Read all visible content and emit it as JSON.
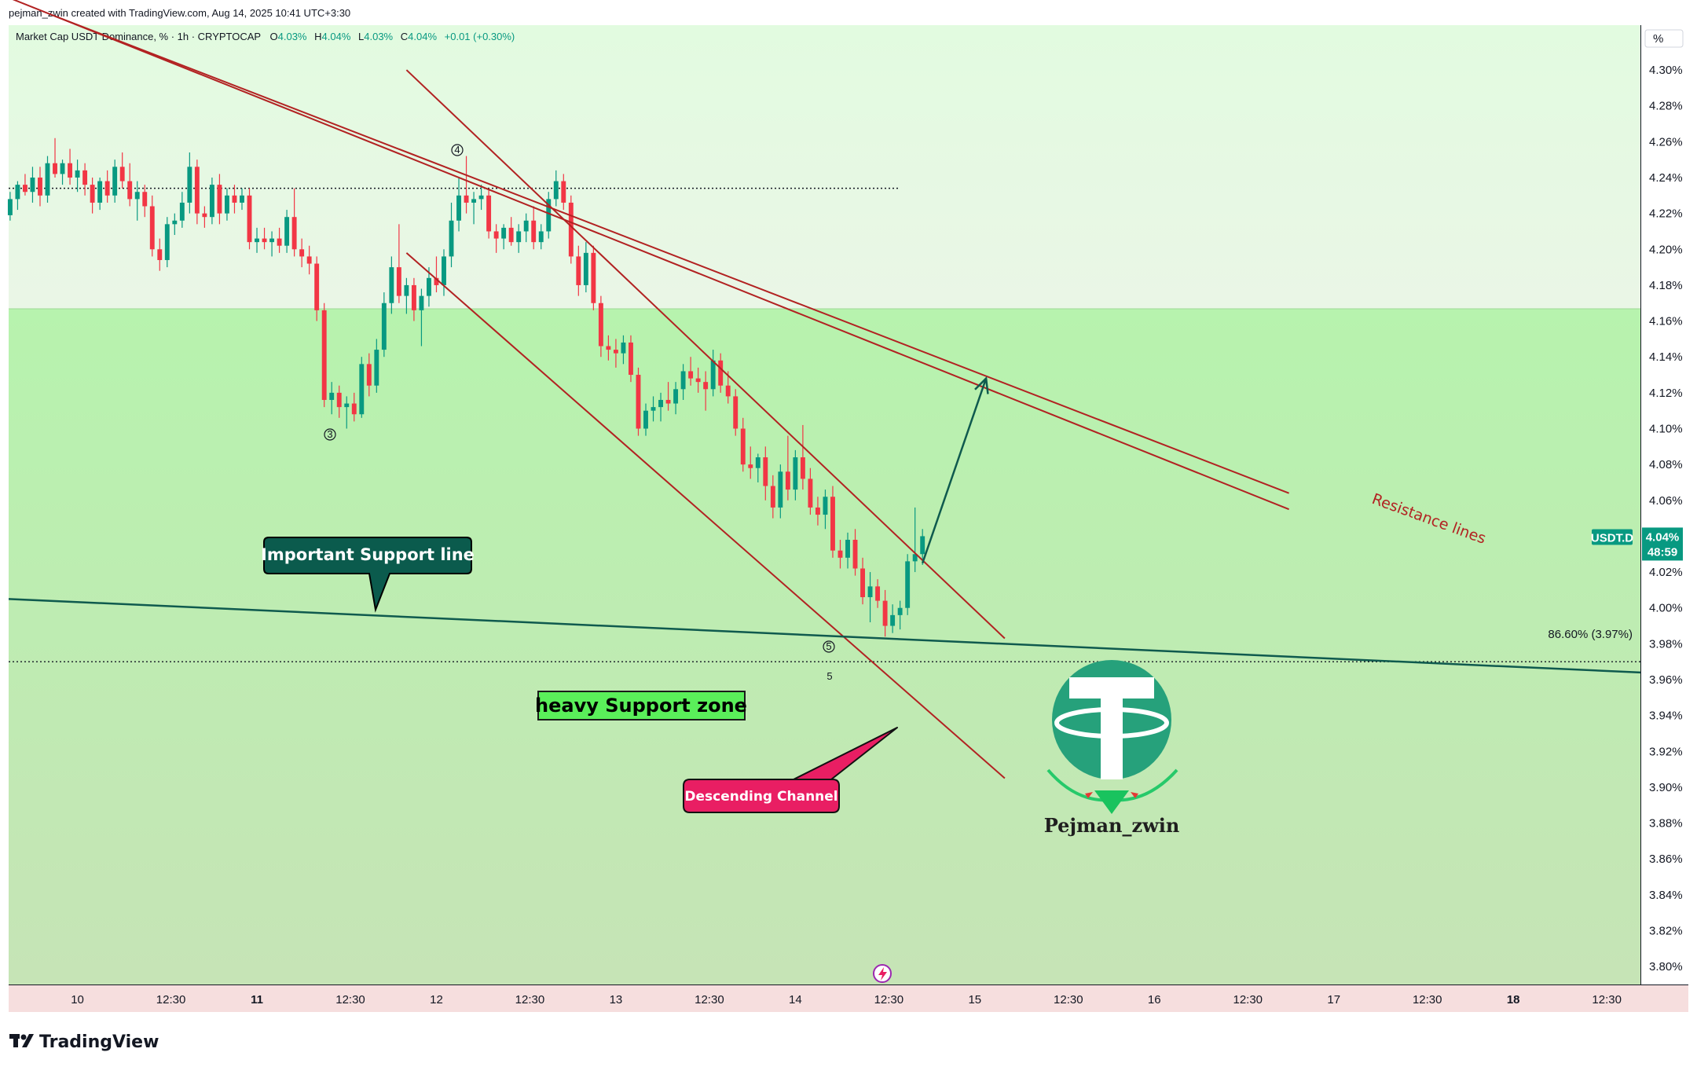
{
  "header": {
    "credit": "pejman_zwin created with TradingView.com, Aug 14, 2025 10:41 UTC+3:30",
    "symbol_line": "Market Cap USDT Dominance, % · 1h · CRYPTOCAP",
    "ohlc": {
      "o_label": "O",
      "o": "4.03%",
      "h_label": "H",
      "h": "4.04%",
      "l_label": "L",
      "l": "4.03%",
      "c_label": "C",
      "c": "4.04%",
      "change": "+0.01 (+0.30%)"
    },
    "unit_button": "%"
  },
  "price_tag": {
    "symbol": "USDT.D",
    "price": "4.04%",
    "countdown": "48:59"
  },
  "fib_label": "86.60% (3.97%)",
  "annotations": {
    "support_line": "Important Support line",
    "support_zone": "heavy Support zone",
    "channel": "Descending Channel",
    "resistance": "Resistance lines",
    "wave_3": "3",
    "wave_4": "4",
    "wave_5_circle": "5",
    "wave_5": "5"
  },
  "logo": {
    "name": "Pejman_zwin"
  },
  "footer": {
    "brand": "TradingView"
  },
  "colors": {
    "up": "#089981",
    "down": "#f23645",
    "resistance": "#b22222",
    "support_line": "#0f5a4e",
    "callout_support": "#0b5b4d",
    "callout_channel": "#e91e63",
    "zone_label_bg": "#5aef5a",
    "tether": "#26a17b",
    "bg_upper": "#e6fae6",
    "bg_zone": "#b8f1b0",
    "time_axis": "#f6dede"
  },
  "chart_data": {
    "type": "candlestick",
    "symbol": "USDT.D",
    "timeframe": "1h",
    "y_unit": "%",
    "ylim": [
      3.79,
      4.325
    ],
    "y_ticks": [
      "4.30%",
      "4.28%",
      "4.26%",
      "4.24%",
      "4.22%",
      "4.20%",
      "4.18%",
      "4.16%",
      "4.14%",
      "4.12%",
      "4.10%",
      "4.08%",
      "4.06%",
      "4.04%",
      "4.02%",
      "4.00%",
      "3.98%",
      "3.96%",
      "3.94%",
      "3.92%",
      "3.90%",
      "3.88%",
      "3.86%",
      "3.84%",
      "3.82%",
      "3.80%"
    ],
    "y_tick_values": [
      4.3,
      4.28,
      4.26,
      4.24,
      4.22,
      4.2,
      4.18,
      4.16,
      4.14,
      4.12,
      4.1,
      4.08,
      4.06,
      4.04,
      4.02,
      4.0,
      3.98,
      3.96,
      3.94,
      3.92,
      3.9,
      3.88,
      3.86,
      3.84,
      3.82,
      3.8
    ],
    "x_unit": "hours since Aug 10 00:00",
    "xlim": [
      -9.2,
      209
    ],
    "x_ticks": [
      {
        "label": "10",
        "t": 0,
        "bold": false
      },
      {
        "label": "12:30",
        "t": 12.5,
        "bold": false
      },
      {
        "label": "11",
        "t": 24,
        "bold": true
      },
      {
        "label": "12:30",
        "t": 36.5,
        "bold": false
      },
      {
        "label": "12",
        "t": 48,
        "bold": false
      },
      {
        "label": "12:30",
        "t": 60.5,
        "bold": false
      },
      {
        "label": "13",
        "t": 72,
        "bold": false
      },
      {
        "label": "12:30",
        "t": 84.5,
        "bold": false
      },
      {
        "label": "14",
        "t": 96,
        "bold": false
      },
      {
        "label": "12:30",
        "t": 108.5,
        "bold": false
      },
      {
        "label": "15",
        "t": 120,
        "bold": false
      },
      {
        "label": "12:30",
        "t": 132.5,
        "bold": false
      },
      {
        "label": "16",
        "t": 144,
        "bold": false
      },
      {
        "label": "12:30",
        "t": 156.5,
        "bold": false
      },
      {
        "label": "17",
        "t": 168,
        "bold": false
      },
      {
        "label": "12:30",
        "t": 180.5,
        "bold": false
      },
      {
        "label": "18",
        "t": 192,
        "bold": true
      },
      {
        "label": "12:30",
        "t": 204.5,
        "bold": false
      }
    ],
    "current_price": 4.04,
    "fib_level": 3.97,
    "zone_boundary": 4.166,
    "dotted_high": {
      "y": 4.234,
      "t_start": -9.2,
      "t_end": 110
    },
    "support_line": {
      "t1": -9.2,
      "y1": 4.005,
      "t2": 209,
      "y2": 3.964
    },
    "resistance_lines": [
      {
        "t1": -3,
        "y1": 4.33,
        "t2": 162,
        "y2": 4.064
      },
      {
        "t1": -9,
        "y1": 4.34,
        "t2": 162,
        "y2": 4.055
      }
    ],
    "channel_lines": [
      {
        "t1": 44,
        "y1": 4.3,
        "t2": 124,
        "y2": 3.983
      },
      {
        "t1": 44,
        "y1": 4.198,
        "t2": 124,
        "y2": 3.905
      }
    ],
    "projection_arrow": {
      "t1": 113,
      "y1": 4.025,
      "t2": 121.5,
      "y2": 4.128
    },
    "candles": [
      {
        "t": -9,
        "o": 4.219,
        "h": 4.232,
        "l": 4.216,
        "c": 4.228
      },
      {
        "t": -8,
        "o": 4.228,
        "h": 4.238,
        "l": 4.222,
        "c": 4.236
      },
      {
        "t": -7,
        "o": 4.236,
        "h": 4.242,
        "l": 4.23,
        "c": 4.232
      },
      {
        "t": -6,
        "o": 4.232,
        "h": 4.246,
        "l": 4.226,
        "c": 4.24
      },
      {
        "t": -5,
        "o": 4.24,
        "h": 4.246,
        "l": 4.224,
        "c": 4.23
      },
      {
        "t": -4,
        "o": 4.23,
        "h": 4.252,
        "l": 4.226,
        "c": 4.248
      },
      {
        "t": -3,
        "o": 4.248,
        "h": 4.262,
        "l": 4.24,
        "c": 4.242
      },
      {
        "t": -2,
        "o": 4.242,
        "h": 4.25,
        "l": 4.236,
        "c": 4.248
      },
      {
        "t": -1,
        "o": 4.248,
        "h": 4.256,
        "l": 4.236,
        "c": 4.24
      },
      {
        "t": 0,
        "o": 4.24,
        "h": 4.25,
        "l": 4.232,
        "c": 4.244
      },
      {
        "t": 1,
        "o": 4.244,
        "h": 4.248,
        "l": 4.23,
        "c": 4.236
      },
      {
        "t": 2,
        "o": 4.236,
        "h": 4.24,
        "l": 4.22,
        "c": 4.226
      },
      {
        "t": 3,
        "o": 4.226,
        "h": 4.24,
        "l": 4.222,
        "c": 4.238
      },
      {
        "t": 4,
        "o": 4.238,
        "h": 4.244,
        "l": 4.226,
        "c": 4.23
      },
      {
        "t": 5,
        "o": 4.23,
        "h": 4.25,
        "l": 4.226,
        "c": 4.246
      },
      {
        "t": 6,
        "o": 4.246,
        "h": 4.254,
        "l": 4.234,
        "c": 4.238
      },
      {
        "t": 7,
        "o": 4.238,
        "h": 4.248,
        "l": 4.224,
        "c": 4.228
      },
      {
        "t": 8,
        "o": 4.228,
        "h": 4.238,
        "l": 4.216,
        "c": 4.232
      },
      {
        "t": 9,
        "o": 4.232,
        "h": 4.236,
        "l": 4.218,
        "c": 4.224
      },
      {
        "t": 10,
        "o": 4.224,
        "h": 4.23,
        "l": 4.196,
        "c": 4.2
      },
      {
        "t": 11,
        "o": 4.2,
        "h": 4.206,
        "l": 4.188,
        "c": 4.194
      },
      {
        "t": 12,
        "o": 4.194,
        "h": 4.218,
        "l": 4.19,
        "c": 4.214
      },
      {
        "t": 13,
        "o": 4.214,
        "h": 4.22,
        "l": 4.208,
        "c": 4.216
      },
      {
        "t": 14,
        "o": 4.216,
        "h": 4.232,
        "l": 4.212,
        "c": 4.226
      },
      {
        "t": 15,
        "o": 4.226,
        "h": 4.254,
        "l": 4.22,
        "c": 4.246
      },
      {
        "t": 16,
        "o": 4.246,
        "h": 4.25,
        "l": 4.214,
        "c": 4.22
      },
      {
        "t": 17,
        "o": 4.22,
        "h": 4.224,
        "l": 4.212,
        "c": 4.218
      },
      {
        "t": 18,
        "o": 4.218,
        "h": 4.24,
        "l": 4.214,
        "c": 4.236
      },
      {
        "t": 19,
        "o": 4.236,
        "h": 4.242,
        "l": 4.214,
        "c": 4.22
      },
      {
        "t": 20,
        "o": 4.22,
        "h": 4.234,
        "l": 4.216,
        "c": 4.23
      },
      {
        "t": 21,
        "o": 4.23,
        "h": 4.236,
        "l": 4.22,
        "c": 4.226
      },
      {
        "t": 22,
        "o": 4.226,
        "h": 4.234,
        "l": 4.222,
        "c": 4.23
      },
      {
        "t": 23,
        "o": 4.23,
        "h": 4.234,
        "l": 4.2,
        "c": 4.204
      },
      {
        "t": 24,
        "o": 4.204,
        "h": 4.212,
        "l": 4.198,
        "c": 4.206
      },
      {
        "t": 25,
        "o": 4.206,
        "h": 4.212,
        "l": 4.2,
        "c": 4.204
      },
      {
        "t": 26,
        "o": 4.204,
        "h": 4.21,
        "l": 4.196,
        "c": 4.206
      },
      {
        "t": 27,
        "o": 4.206,
        "h": 4.212,
        "l": 4.198,
        "c": 4.202
      },
      {
        "t": 28,
        "o": 4.202,
        "h": 4.222,
        "l": 4.198,
        "c": 4.218
      },
      {
        "t": 29,
        "o": 4.218,
        "h": 4.234,
        "l": 4.196,
        "c": 4.2
      },
      {
        "t": 30,
        "o": 4.2,
        "h": 4.206,
        "l": 4.19,
        "c": 4.196
      },
      {
        "t": 31,
        "o": 4.196,
        "h": 4.202,
        "l": 4.186,
        "c": 4.192
      },
      {
        "t": 32,
        "o": 4.192,
        "h": 4.196,
        "l": 4.16,
        "c": 4.166
      },
      {
        "t": 33,
        "o": 4.166,
        "h": 4.17,
        "l": 4.112,
        "c": 4.116
      },
      {
        "t": 34,
        "o": 4.116,
        "h": 4.126,
        "l": 4.108,
        "c": 4.12
      },
      {
        "t": 35,
        "o": 4.12,
        "h": 4.124,
        "l": 4.106,
        "c": 4.112
      },
      {
        "t": 36,
        "o": 4.112,
        "h": 4.118,
        "l": 4.1,
        "c": 4.114
      },
      {
        "t": 37,
        "o": 4.114,
        "h": 4.12,
        "l": 4.104,
        "c": 4.108
      },
      {
        "t": 38,
        "o": 4.108,
        "h": 4.14,
        "l": 4.106,
        "c": 4.136
      },
      {
        "t": 39,
        "o": 4.136,
        "h": 4.142,
        "l": 4.118,
        "c": 4.124
      },
      {
        "t": 40,
        "o": 4.124,
        "h": 4.15,
        "l": 4.12,
        "c": 4.144
      },
      {
        "t": 41,
        "o": 4.144,
        "h": 4.176,
        "l": 4.14,
        "c": 4.17
      },
      {
        "t": 42,
        "o": 4.17,
        "h": 4.196,
        "l": 4.164,
        "c": 4.19
      },
      {
        "t": 43,
        "o": 4.19,
        "h": 4.214,
        "l": 4.17,
        "c": 4.174
      },
      {
        "t": 44,
        "o": 4.174,
        "h": 4.184,
        "l": 4.164,
        "c": 4.18
      },
      {
        "t": 45,
        "o": 4.18,
        "h": 4.184,
        "l": 4.16,
        "c": 4.166
      },
      {
        "t": 46,
        "o": 4.166,
        "h": 4.178,
        "l": 4.146,
        "c": 4.174
      },
      {
        "t": 47,
        "o": 4.174,
        "h": 4.19,
        "l": 4.168,
        "c": 4.184
      },
      {
        "t": 48,
        "o": 4.184,
        "h": 4.196,
        "l": 4.176,
        "c": 4.18
      },
      {
        "t": 49,
        "o": 4.18,
        "h": 4.2,
        "l": 4.174,
        "c": 4.196
      },
      {
        "t": 50,
        "o": 4.196,
        "h": 4.226,
        "l": 4.19,
        "c": 4.216
      },
      {
        "t": 51,
        "o": 4.216,
        "h": 4.24,
        "l": 4.21,
        "c": 4.23
      },
      {
        "t": 52,
        "o": 4.23,
        "h": 4.252,
        "l": 4.22,
        "c": 4.226
      },
      {
        "t": 53,
        "o": 4.226,
        "h": 4.232,
        "l": 4.214,
        "c": 4.228
      },
      {
        "t": 54,
        "o": 4.228,
        "h": 4.236,
        "l": 4.222,
        "c": 4.23
      },
      {
        "t": 55,
        "o": 4.23,
        "h": 4.234,
        "l": 4.206,
        "c": 4.21
      },
      {
        "t": 56,
        "o": 4.21,
        "h": 4.214,
        "l": 4.198,
        "c": 4.206
      },
      {
        "t": 57,
        "o": 4.206,
        "h": 4.214,
        "l": 4.2,
        "c": 4.212
      },
      {
        "t": 58,
        "o": 4.212,
        "h": 4.218,
        "l": 4.202,
        "c": 4.204
      },
      {
        "t": 59,
        "o": 4.204,
        "h": 4.214,
        "l": 4.198,
        "c": 4.21
      },
      {
        "t": 60,
        "o": 4.21,
        "h": 4.22,
        "l": 4.204,
        "c": 4.216
      },
      {
        "t": 61,
        "o": 4.216,
        "h": 4.224,
        "l": 4.2,
        "c": 4.204
      },
      {
        "t": 62,
        "o": 4.204,
        "h": 4.214,
        "l": 4.2,
        "c": 4.21
      },
      {
        "t": 63,
        "o": 4.21,
        "h": 4.232,
        "l": 4.206,
        "c": 4.228
      },
      {
        "t": 64,
        "o": 4.228,
        "h": 4.244,
        "l": 4.224,
        "c": 4.238
      },
      {
        "t": 65,
        "o": 4.238,
        "h": 4.242,
        "l": 4.222,
        "c": 4.226
      },
      {
        "t": 66,
        "o": 4.226,
        "h": 4.23,
        "l": 4.192,
        "c": 4.196
      },
      {
        "t": 67,
        "o": 4.196,
        "h": 4.202,
        "l": 4.174,
        "c": 4.18
      },
      {
        "t": 68,
        "o": 4.18,
        "h": 4.204,
        "l": 4.176,
        "c": 4.198
      },
      {
        "t": 69,
        "o": 4.198,
        "h": 4.202,
        "l": 4.166,
        "c": 4.17
      },
      {
        "t": 70,
        "o": 4.17,
        "h": 4.174,
        "l": 4.14,
        "c": 4.146
      },
      {
        "t": 71,
        "o": 4.146,
        "h": 4.152,
        "l": 4.138,
        "c": 4.144
      },
      {
        "t": 72,
        "o": 4.144,
        "h": 4.15,
        "l": 4.134,
        "c": 4.142
      },
      {
        "t": 73,
        "o": 4.142,
        "h": 4.152,
        "l": 4.136,
        "c": 4.148
      },
      {
        "t": 74,
        "o": 4.148,
        "h": 4.152,
        "l": 4.126,
        "c": 4.13
      },
      {
        "t": 75,
        "o": 4.13,
        "h": 4.134,
        "l": 4.096,
        "c": 4.1
      },
      {
        "t": 76,
        "o": 4.1,
        "h": 4.114,
        "l": 4.096,
        "c": 4.11
      },
      {
        "t": 77,
        "o": 4.11,
        "h": 4.118,
        "l": 4.104,
        "c": 4.112
      },
      {
        "t": 78,
        "o": 4.112,
        "h": 4.12,
        "l": 4.104,
        "c": 4.116
      },
      {
        "t": 79,
        "o": 4.116,
        "h": 4.126,
        "l": 4.11,
        "c": 4.114
      },
      {
        "t": 80,
        "o": 4.114,
        "h": 4.126,
        "l": 4.108,
        "c": 4.122
      },
      {
        "t": 81,
        "o": 4.122,
        "h": 4.136,
        "l": 4.116,
        "c": 4.132
      },
      {
        "t": 82,
        "o": 4.132,
        "h": 4.14,
        "l": 4.124,
        "c": 4.128
      },
      {
        "t": 83,
        "o": 4.128,
        "h": 4.134,
        "l": 4.12,
        "c": 4.126
      },
      {
        "t": 84,
        "o": 4.126,
        "h": 4.132,
        "l": 4.11,
        "c": 4.122
      },
      {
        "t": 85,
        "o": 4.122,
        "h": 4.144,
        "l": 4.118,
        "c": 4.138
      },
      {
        "t": 86,
        "o": 4.138,
        "h": 4.142,
        "l": 4.12,
        "c": 4.124
      },
      {
        "t": 87,
        "o": 4.124,
        "h": 4.132,
        "l": 4.114,
        "c": 4.118
      },
      {
        "t": 88,
        "o": 4.118,
        "h": 4.122,
        "l": 4.096,
        "c": 4.1
      },
      {
        "t": 89,
        "o": 4.1,
        "h": 4.106,
        "l": 4.076,
        "c": 4.08
      },
      {
        "t": 90,
        "o": 4.08,
        "h": 4.09,
        "l": 4.072,
        "c": 4.078
      },
      {
        "t": 91,
        "o": 4.078,
        "h": 4.086,
        "l": 4.07,
        "c": 4.084
      },
      {
        "t": 92,
        "o": 4.084,
        "h": 4.09,
        "l": 4.06,
        "c": 4.068
      },
      {
        "t": 93,
        "o": 4.068,
        "h": 4.074,
        "l": 4.05,
        "c": 4.056
      },
      {
        "t": 94,
        "o": 4.056,
        "h": 4.08,
        "l": 4.05,
        "c": 4.076
      },
      {
        "t": 95,
        "o": 4.076,
        "h": 4.096,
        "l": 4.06,
        "c": 4.066
      },
      {
        "t": 96,
        "o": 4.066,
        "h": 4.088,
        "l": 4.06,
        "c": 4.084
      },
      {
        "t": 97,
        "o": 4.084,
        "h": 4.102,
        "l": 4.066,
        "c": 4.072
      },
      {
        "t": 98,
        "o": 4.072,
        "h": 4.078,
        "l": 4.052,
        "c": 4.056
      },
      {
        "t": 99,
        "o": 4.056,
        "h": 4.062,
        "l": 4.046,
        "c": 4.052
      },
      {
        "t": 100,
        "o": 4.052,
        "h": 4.066,
        "l": 4.044,
        "c": 4.062
      },
      {
        "t": 101,
        "o": 4.062,
        "h": 4.068,
        "l": 4.028,
        "c": 4.032
      },
      {
        "t": 102,
        "o": 4.032,
        "h": 4.038,
        "l": 4.022,
        "c": 4.028
      },
      {
        "t": 103,
        "o": 4.028,
        "h": 4.042,
        "l": 4.022,
        "c": 4.038
      },
      {
        "t": 104,
        "o": 4.038,
        "h": 4.044,
        "l": 4.018,
        "c": 4.022
      },
      {
        "t": 105,
        "o": 4.022,
        "h": 4.028,
        "l": 4.002,
        "c": 4.006
      },
      {
        "t": 106,
        "o": 4.006,
        "h": 4.02,
        "l": 3.992,
        "c": 4.012
      },
      {
        "t": 107,
        "o": 4.012,
        "h": 4.016,
        "l": 4.0,
        "c": 4.004
      },
      {
        "t": 108,
        "o": 4.004,
        "h": 4.01,
        "l": 3.984,
        "c": 3.99
      },
      {
        "t": 109,
        "o": 3.99,
        "h": 4.002,
        "l": 3.986,
        "c": 3.996
      },
      {
        "t": 110,
        "o": 3.996,
        "h": 4.004,
        "l": 3.988,
        "c": 4.0
      },
      {
        "t": 111,
        "o": 4.0,
        "h": 4.03,
        "l": 3.996,
        "c": 4.026
      },
      {
        "t": 112,
        "o": 4.026,
        "h": 4.056,
        "l": 4.02,
        "c": 4.03
      },
      {
        "t": 113,
        "o": 4.03,
        "h": 4.044,
        "l": 4.024,
        "c": 4.04
      }
    ]
  }
}
